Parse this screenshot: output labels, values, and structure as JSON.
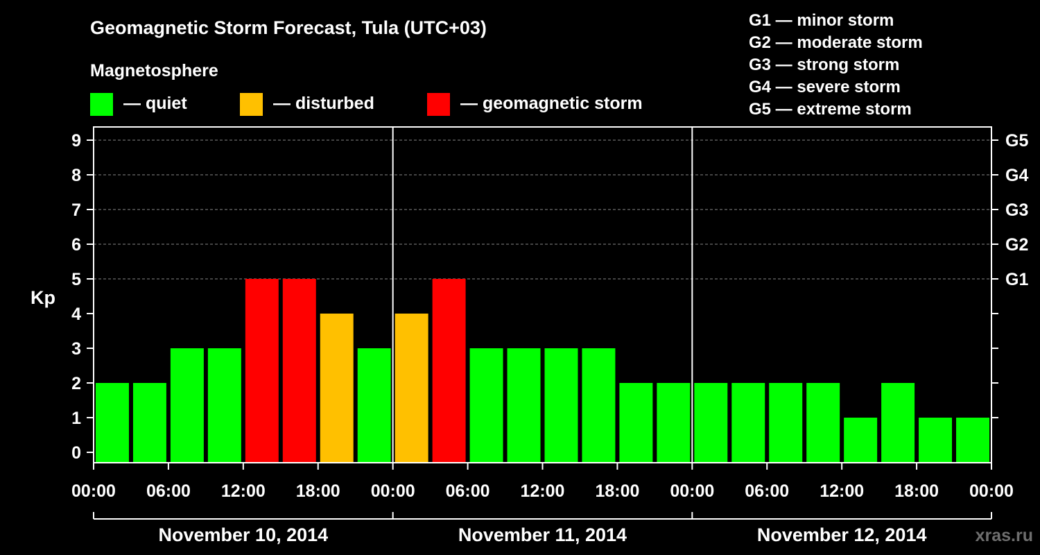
{
  "chart_data": {
    "type": "bar",
    "title": "Geomagnetic Storm Forecast, Tula (UTC+03)",
    "legend_heading": "Magnetosphere",
    "legend": [
      {
        "label": "— quiet",
        "color": "#00ff00"
      },
      {
        "label": "— disturbed",
        "color": "#ffc000"
      },
      {
        "label": "— geomagnetic storm",
        "color": "#ff0000"
      }
    ],
    "storm_scale": [
      "G1 — minor storm",
      "G2 — moderate storm",
      "G3 — strong storm",
      "G4 — severe storm",
      "G5 — extreme storm"
    ],
    "ylabel": "Kp",
    "ylim": [
      0,
      9
    ],
    "y_ticks": [
      "0",
      "1",
      "2",
      "3",
      "4",
      "5",
      "6",
      "7",
      "8",
      "9"
    ],
    "g_levels": [
      {
        "label": "G1",
        "kp": 5
      },
      {
        "label": "G2",
        "kp": 6
      },
      {
        "label": "G3",
        "kp": 7
      },
      {
        "label": "G4",
        "kp": 8
      },
      {
        "label": "G5",
        "kp": 9
      }
    ],
    "x_ticks": [
      "00:00",
      "06:00",
      "12:00",
      "18:00",
      "00:00",
      "06:00",
      "12:00",
      "18:00",
      "00:00",
      "06:00",
      "12:00",
      "18:00",
      "00:00"
    ],
    "days": [
      "November 10, 2014",
      "November 11, 2014",
      "November 12, 2014"
    ],
    "interval_hours": 3,
    "values": [
      2,
      2,
      3,
      3,
      5,
      5,
      4,
      3,
      4,
      5,
      3,
      3,
      3,
      3,
      2,
      2,
      2,
      2,
      2,
      2,
      1,
      2,
      1,
      1
    ],
    "thresholds": {
      "disturbed": 4,
      "storm": 5
    },
    "colors": {
      "quiet": "#00ff00",
      "disturbed": "#ffc000",
      "storm": "#ff0000",
      "grid": "#888888",
      "axis": "#ffffff"
    },
    "grid": true
  },
  "watermark": "xras.ru"
}
